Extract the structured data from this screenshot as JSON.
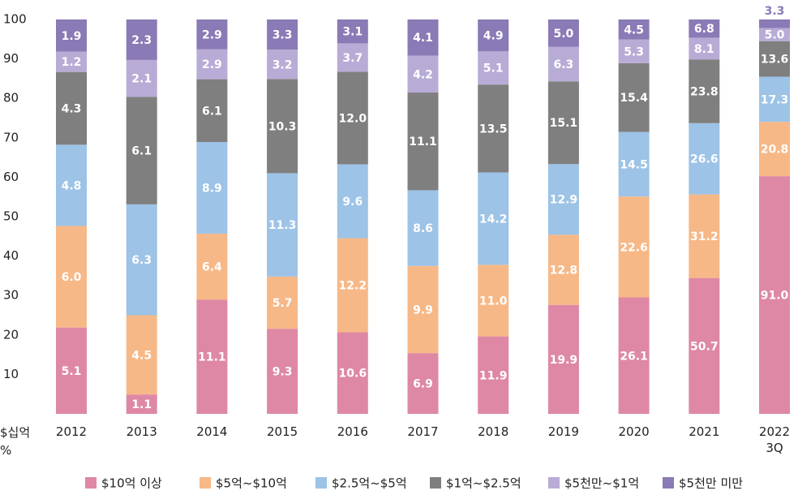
{
  "chart_data": {
    "type": "bar",
    "stack": "percent",
    "y_unit": "$십억",
    "y_label": "%",
    "categories": [
      "2012",
      "2013",
      "2014",
      "2015",
      "2016",
      "2017",
      "2018",
      "2019",
      "2020",
      "2021",
      "2022 3Q"
    ],
    "ylim": [
      0,
      100
    ],
    "yticks": [
      10,
      20,
      30,
      40,
      50,
      60,
      70,
      80,
      90,
      100
    ],
    "legend": "bottom",
    "series": [
      {
        "name": "$10억 이상",
        "color": "#de88a5",
        "values": [
          5.1,
          1.1,
          11.1,
          9.3,
          10.6,
          6.9,
          11.9,
          19.9,
          26.1,
          50.7,
          91.0
        ],
        "value_labels": [
          "5.1",
          "1.1",
          "11.1",
          "9.3",
          "10.6",
          "6.9",
          "11.9",
          "19.9",
          "26.1",
          "50.7",
          "91.0"
        ]
      },
      {
        "name": "$5억~$10억",
        "color": "#f7b887",
        "values": [
          6.0,
          4.5,
          6.4,
          5.7,
          12.2,
          9.9,
          11.0,
          12.8,
          22.6,
          31.2,
          20.8
        ],
        "value_labels": [
          "6.0",
          "4.5",
          "6.4",
          "5.7",
          "12.2",
          "9.9",
          "11.0",
          "12.8",
          "22.6",
          "31.2",
          "20.8"
        ]
      },
      {
        "name": "$2.5억~$5억",
        "color": "#9dc3e6",
        "values": [
          4.8,
          6.3,
          8.9,
          11.3,
          9.6,
          8.6,
          14.2,
          12.9,
          14.5,
          26.6,
          17.3
        ],
        "value_labels": [
          "4.8",
          "6.3",
          "8.9",
          "11.3",
          "9.6",
          "8.6",
          "14.2",
          "12.9",
          "14.5",
          "26.6",
          "17.3"
        ]
      },
      {
        "name": "$1억~$2.5억",
        "color": "#7f7f7f",
        "values": [
          4.3,
          6.1,
          6.1,
          10.3,
          12.0,
          11.1,
          13.5,
          15.1,
          15.4,
          23.8,
          13.6
        ],
        "value_labels": [
          "4.3",
          "6.1",
          "6.1",
          "10.3",
          "12.0",
          "11.1",
          "13.5",
          "15.1",
          "15.4",
          "23.8",
          "13.6"
        ]
      },
      {
        "name": "$5천만~$1억",
        "color": "#b8acd6",
        "values": [
          1.2,
          2.1,
          2.9,
          3.2,
          3.7,
          4.2,
          5.1,
          6.3,
          5.3,
          8.1,
          5.0
        ],
        "value_labels": [
          "1.2",
          "2.1",
          "2.9",
          "3.2",
          "3.7",
          "4.2",
          "5.1",
          "6.3",
          "5.3",
          "8.1",
          "5.0"
        ]
      },
      {
        "name": "$5천만 미만",
        "color": "#8a7ab5",
        "values": [
          1.9,
          2.3,
          2.9,
          3.3,
          3.1,
          4.1,
          4.9,
          5.0,
          4.5,
          6.8,
          3.3
        ],
        "value_labels": [
          "1.9",
          "2.3",
          "2.9",
          "3.3",
          "3.1",
          "4.1",
          "4.9",
          "5.0",
          "4.5",
          "6.8",
          "3.3"
        ]
      }
    ]
  }
}
